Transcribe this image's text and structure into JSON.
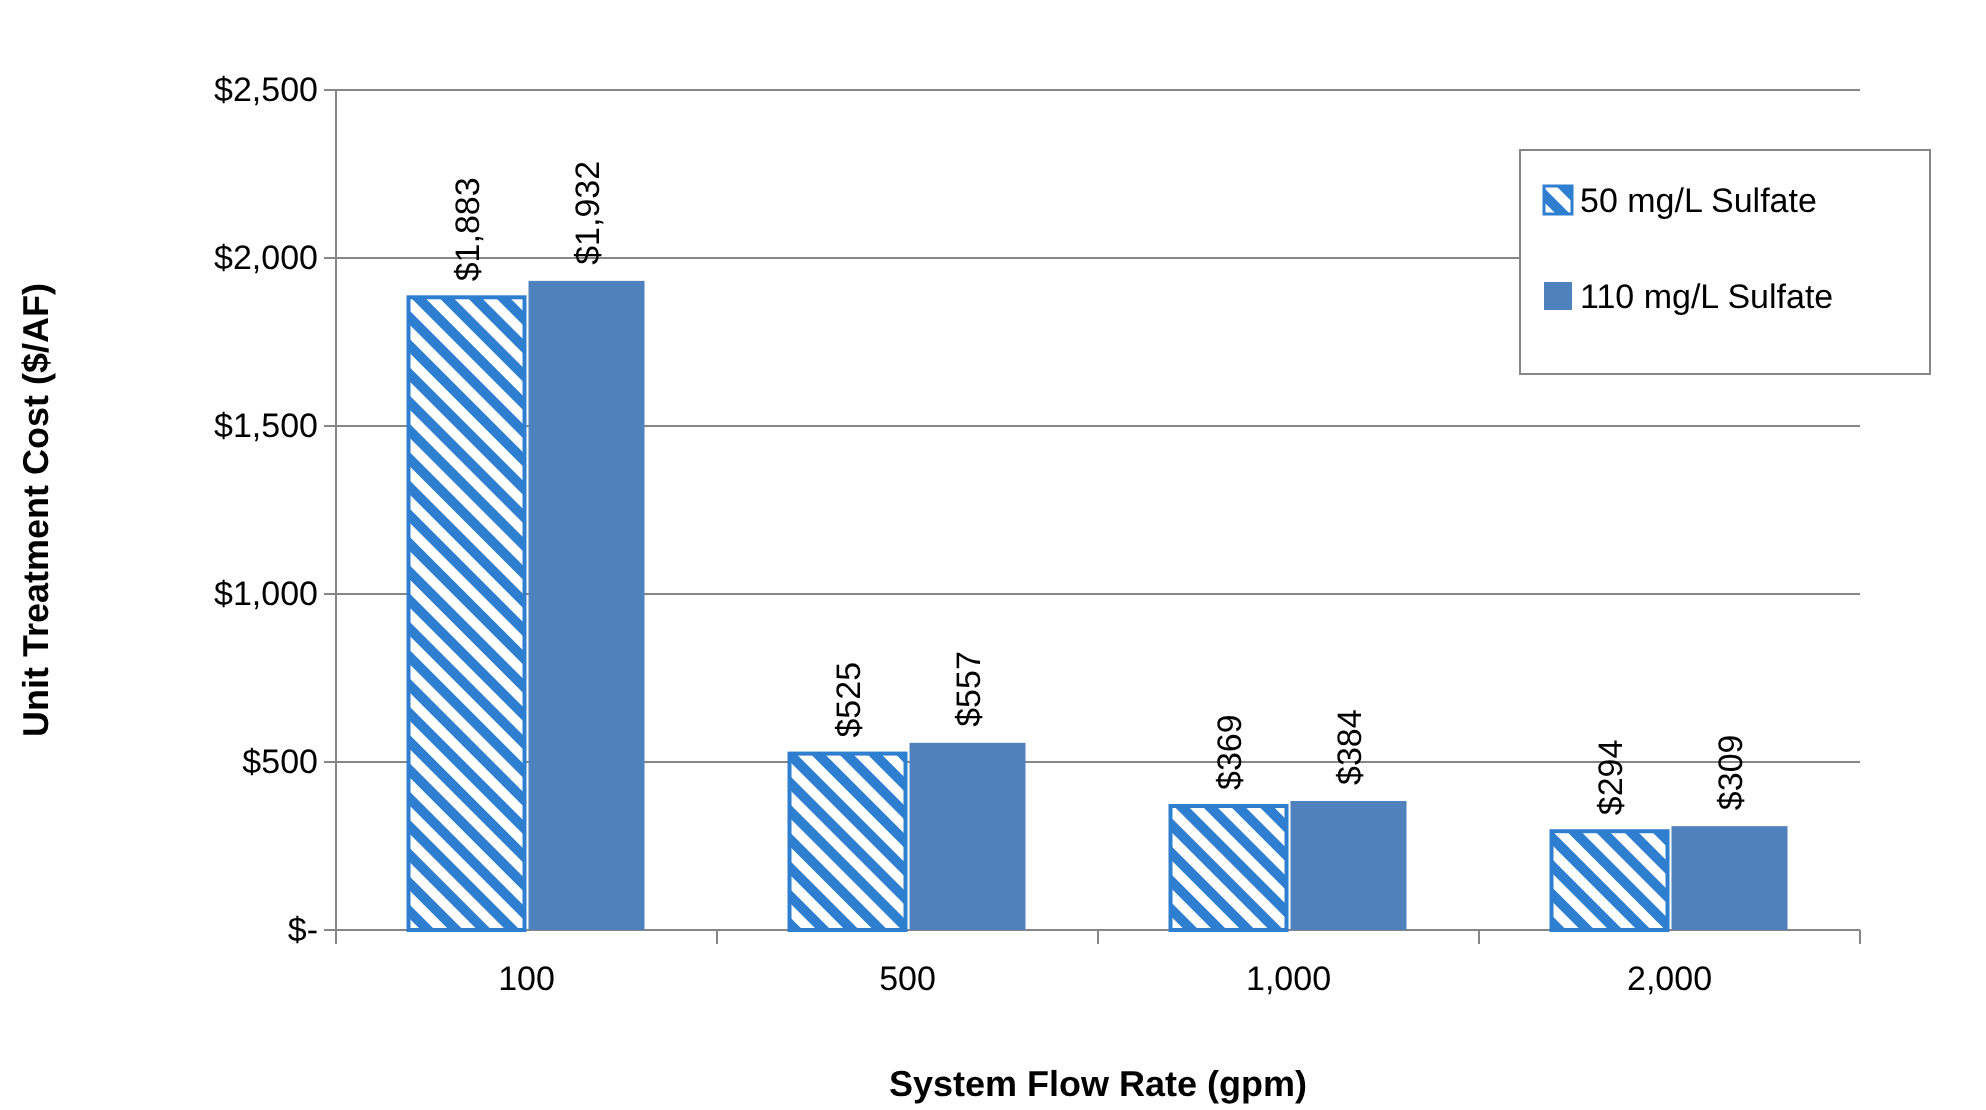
{
  "chart_data": {
    "type": "bar",
    "xlabel": "System Flow Rate (gpm)",
    "ylabel": "Unit Treatment Cost ($/AF)",
    "categories": [
      "100",
      "500",
      "1,000",
      "2,000"
    ],
    "series": [
      {
        "name": "50 mg/L Sulfate",
        "color": "#2e7fd0",
        "values": [
          1883,
          525,
          369,
          294
        ],
        "value_labels": [
          "$1,883",
          "$525",
          "$369",
          "$294"
        ]
      },
      {
        "name": "110 mg/L Sulfate",
        "color": "#4f81bd",
        "values": [
          1932,
          557,
          384,
          309
        ],
        "value_labels": [
          "$1,932",
          "$557",
          "$384",
          "$309"
        ]
      }
    ],
    "ylim": [
      0,
      2500
    ],
    "yticks": [
      {
        "value": 0,
        "label": "$-"
      },
      {
        "value": 500,
        "label": "$500"
      },
      {
        "value": 1000,
        "label": "$1,000"
      },
      {
        "value": 1500,
        "label": "$1,500"
      },
      {
        "value": 2000,
        "label": "$2,000"
      },
      {
        "value": 2500,
        "label": "$2,500"
      }
    ],
    "grid": "y",
    "legend": "top right"
  }
}
